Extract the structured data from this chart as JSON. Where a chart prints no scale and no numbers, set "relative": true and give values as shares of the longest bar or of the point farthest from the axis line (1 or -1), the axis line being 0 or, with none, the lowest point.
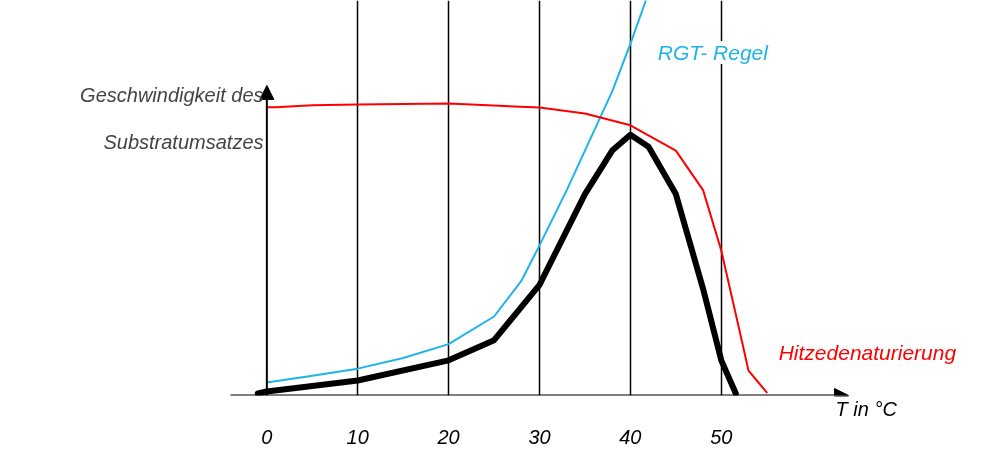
{
  "chart_data": {
    "type": "line",
    "relative": true,
    "xlabel": "T in °C",
    "ylabel": "Geschwindigkeit des\nSubstratumsatzes",
    "xlim": [
      -4,
      64
    ],
    "xticks": [
      0,
      10,
      20,
      30,
      40,
      50
    ],
    "grid": "x",
    "legend": false,
    "marker": "none",
    "line_style": "solid",
    "series": [
      {
        "name": "RGT- Regel",
        "color": "#1eb4e8",
        "x": [
          0,
          5,
          10,
          15,
          20,
          25,
          28,
          30,
          33,
          35,
          38,
          40,
          41.7
        ],
        "values": [
          0.033,
          0.05,
          0.068,
          0.095,
          0.13,
          0.2,
          0.29,
          0.38,
          0.52,
          0.62,
          0.77,
          0.89,
          1.0
        ]
      },
      {
        "name": "Hitzedenaturierung",
        "color": "#ff0000",
        "x": [
          0,
          1,
          5,
          10,
          20,
          30,
          35,
          40,
          45,
          48,
          50,
          52,
          53,
          55
        ],
        "values": [
          0.73,
          0.73,
          0.735,
          0.737,
          0.739,
          0.729,
          0.714,
          0.684,
          0.62,
          0.52,
          0.367,
          0.165,
          0.063,
          0.008
        ]
      },
      {
        "color": "#000000",
        "x": [
          -1,
          0,
          10,
          20,
          25,
          30,
          35,
          38,
          40,
          42,
          45,
          48,
          50,
          51.6
        ],
        "values": [
          0.005,
          0.01,
          0.038,
          0.089,
          0.14,
          0.28,
          0.51,
          0.62,
          0.66,
          0.63,
          0.51,
          0.27,
          0.089,
          0.005
        ]
      }
    ]
  }
}
